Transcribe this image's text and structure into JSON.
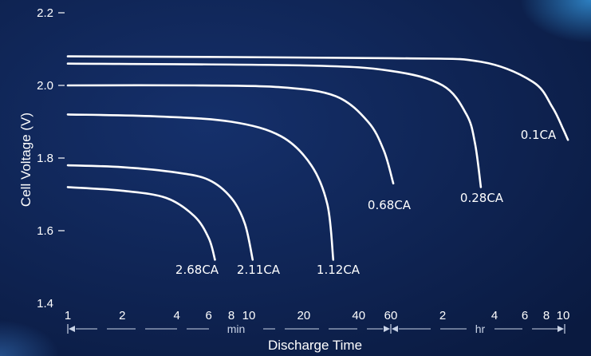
{
  "chart_data": {
    "type": "line",
    "xlabel": "Discharge Time",
    "ylabel": "Cell Voltage (V)",
    "ylim": [
      1.4,
      2.2
    ],
    "yticks": [
      "1.4",
      "1.6",
      "1.8",
      "2.0",
      "2.2"
    ],
    "xscale": "log",
    "x_unit_min": "min",
    "x_unit_hr": "hr",
    "xticks_min": [
      "1",
      "2",
      "4",
      "6",
      "8",
      "10",
      "20",
      "40",
      "60"
    ],
    "xticks_hr": [
      "2",
      "4",
      "6",
      "8",
      "10"
    ],
    "xtick_minutes": [
      1,
      2,
      4,
      6,
      8,
      10,
      20,
      40,
      60,
      120,
      240,
      360,
      480,
      600
    ],
    "grid": false,
    "series": [
      {
        "name": "2.68CA",
        "points": [
          [
            1,
            1.72
          ],
          [
            2,
            1.71
          ],
          [
            3.5,
            1.69
          ],
          [
            5,
            1.64
          ],
          [
            6,
            1.58
          ],
          [
            6.5,
            1.52
          ]
        ]
      },
      {
        "name": "2.11CA",
        "points": [
          [
            1,
            1.78
          ],
          [
            2,
            1.775
          ],
          [
            4,
            1.76
          ],
          [
            6,
            1.74
          ],
          [
            8,
            1.69
          ],
          [
            9.5,
            1.62
          ],
          [
            10.5,
            1.52
          ]
        ]
      },
      {
        "name": "1.12CA",
        "points": [
          [
            1,
            1.92
          ],
          [
            3,
            1.915
          ],
          [
            8,
            1.9
          ],
          [
            15,
            1.86
          ],
          [
            22,
            1.78
          ],
          [
            27,
            1.67
          ],
          [
            29,
            1.52
          ]
        ]
      },
      {
        "name": "0.68CA",
        "points": [
          [
            1,
            2.0
          ],
          [
            5,
            2.0
          ],
          [
            15,
            1.995
          ],
          [
            30,
            1.97
          ],
          [
            45,
            1.9
          ],
          [
            55,
            1.82
          ],
          [
            62,
            1.73
          ]
        ]
      },
      {
        "name": "0.28CA",
        "points": [
          [
            1,
            2.06
          ],
          [
            20,
            2.055
          ],
          [
            60,
            2.04
          ],
          [
            120,
            2.0
          ],
          [
            165,
            1.92
          ],
          [
            185,
            1.84
          ],
          [
            200,
            1.72
          ]
        ]
      },
      {
        "name": "0.1CA",
        "points": [
          [
            1,
            2.08
          ],
          [
            60,
            2.075
          ],
          [
            200,
            2.065
          ],
          [
            400,
            2.01
          ],
          [
            520,
            1.94
          ],
          [
            600,
            1.88
          ],
          [
            640,
            1.85
          ]
        ]
      }
    ]
  }
}
